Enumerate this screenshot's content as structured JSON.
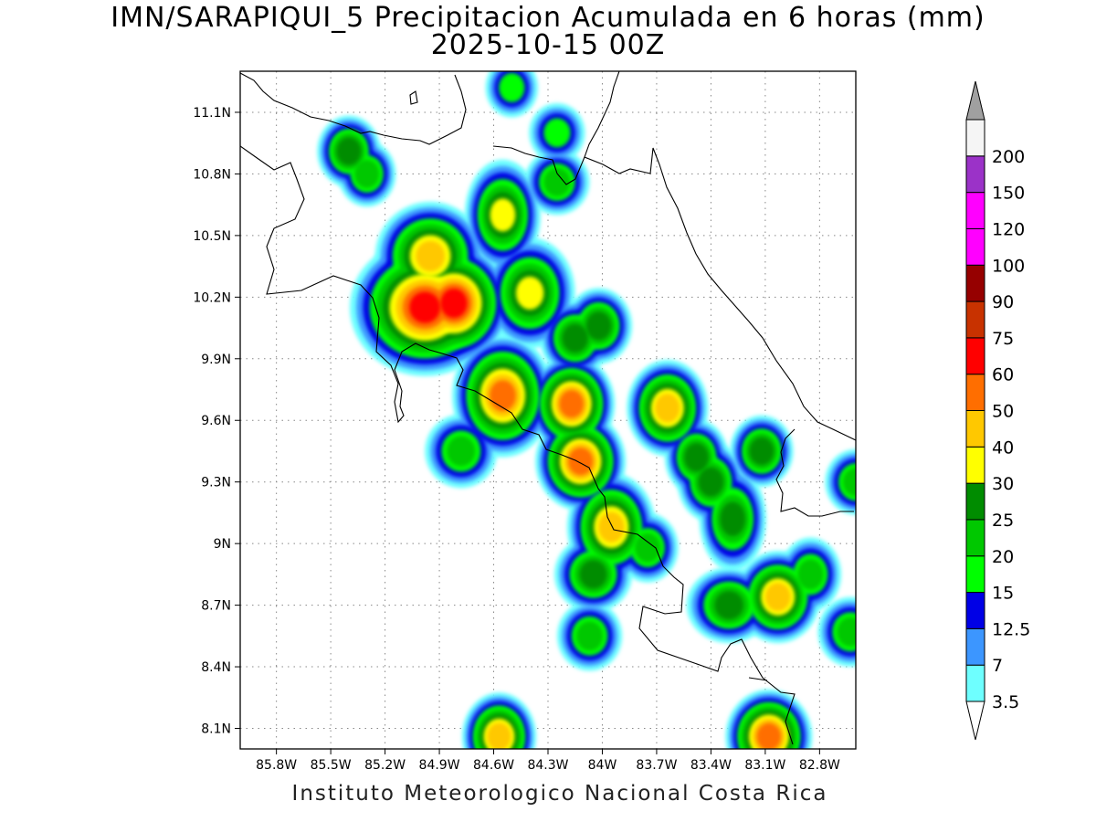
{
  "title": {
    "line1": "IMN/SARAPIQUI_5 Precipitacion Acumulada en 6 horas (mm)",
    "line2": "2025-10-15 00Z"
  },
  "footer": "Instituto Meteorologico Nacional Costa Rica",
  "map": {
    "lon_range": [
      -86.0,
      -82.6
    ],
    "lat_range": [
      8.0,
      11.3
    ],
    "lat_ticks": [
      {
        "value": 11.1,
        "label": "11.1N"
      },
      {
        "value": 10.8,
        "label": "10.8N"
      },
      {
        "value": 10.5,
        "label": "10.5N"
      },
      {
        "value": 10.2,
        "label": "10.2N"
      },
      {
        "value": 9.9,
        "label": "9.9N"
      },
      {
        "value": 9.6,
        "label": "9.6N"
      },
      {
        "value": 9.3,
        "label": "9.3N"
      },
      {
        "value": 9.0,
        "label": "9N"
      },
      {
        "value": 8.7,
        "label": "8.7N"
      },
      {
        "value": 8.4,
        "label": "8.4N"
      },
      {
        "value": 8.1,
        "label": "8.1N"
      }
    ],
    "lon_ticks": [
      {
        "value": -85.8,
        "label": "85.8W"
      },
      {
        "value": -85.5,
        "label": "85.5W"
      },
      {
        "value": -85.2,
        "label": "85.2W"
      },
      {
        "value": -84.9,
        "label": "84.9W"
      },
      {
        "value": -84.6,
        "label": "84.6W"
      },
      {
        "value": -84.3,
        "label": "84.3W"
      },
      {
        "value": -84.0,
        "label": "84W"
      },
      {
        "value": -83.7,
        "label": "83.7W"
      },
      {
        "value": -83.4,
        "label": "83.4W"
      },
      {
        "value": -83.1,
        "label": "83.1W"
      },
      {
        "value": -82.8,
        "label": "82.8W"
      }
    ],
    "grid": "dotted",
    "coastline_color": "#000000"
  },
  "colorbar": {
    "unit": "mm",
    "orientation": "vertical",
    "bins": [
      {
        "label": "3.5",
        "color": "#6effff"
      },
      {
        "label": "7",
        "color": "#3c96ff"
      },
      {
        "label": "12.5",
        "color": "#0000e6"
      },
      {
        "label": "15",
        "color": "#00ff00"
      },
      {
        "label": "20",
        "color": "#00c800"
      },
      {
        "label": "25",
        "color": "#008c00"
      },
      {
        "label": "30",
        "color": "#ffff00"
      },
      {
        "label": "40",
        "color": "#ffc800"
      },
      {
        "label": "50",
        "color": "#ff6e00"
      },
      {
        "label": "60",
        "color": "#ff0000"
      },
      {
        "label": "75",
        "color": "#c83200"
      },
      {
        "label": "90",
        "color": "#960000"
      },
      {
        "label": "100",
        "color": "#ff00ff"
      },
      {
        "label": "120",
        "color": "#ff00ff"
      },
      {
        "label": "150",
        "color": "#9b32c8"
      },
      {
        "label": "200",
        "color": "#f5f5f5"
      }
    ],
    "over_color": "#a0a0a0",
    "under_color": "#ffffff"
  },
  "precip_cells": [
    {
      "lon": -84.98,
      "lat": 10.15,
      "rx": 0.22,
      "ry": 0.14,
      "level": 9
    },
    {
      "lon": -84.82,
      "lat": 10.17,
      "rx": 0.12,
      "ry": 0.1,
      "level": 9
    },
    {
      "lon": -84.95,
      "lat": 10.4,
      "rx": 0.14,
      "ry": 0.1,
      "level": 7
    },
    {
      "lon": -84.55,
      "lat": 10.6,
      "rx": 0.06,
      "ry": 0.12,
      "level": 6
    },
    {
      "lon": -84.4,
      "lat": 10.22,
      "rx": 0.1,
      "ry": 0.12,
      "level": 6
    },
    {
      "lon": -84.55,
      "lat": 9.72,
      "rx": 0.1,
      "ry": 0.12,
      "level": 8
    },
    {
      "lon": -84.17,
      "lat": 9.68,
      "rx": 0.06,
      "ry": 0.06,
      "level": 8
    },
    {
      "lon": -84.12,
      "lat": 9.4,
      "rx": 0.07,
      "ry": 0.06,
      "level": 8
    },
    {
      "lon": -83.95,
      "lat": 9.08,
      "rx": 0.08,
      "ry": 0.1,
      "level": 7
    },
    {
      "lon": -83.64,
      "lat": 9.66,
      "rx": 0.06,
      "ry": 0.07,
      "level": 7
    },
    {
      "lon": -83.03,
      "lat": 8.74,
      "rx": 0.07,
      "ry": 0.06,
      "level": 7
    },
    {
      "lon": -83.08,
      "lat": 8.06,
      "rx": 0.06,
      "ry": 0.05,
      "level": 8
    },
    {
      "lon": -84.57,
      "lat": 8.06,
      "rx": 0.04,
      "ry": 0.05,
      "level": 7
    },
    {
      "lon": -83.4,
      "lat": 9.3,
      "rx": 0.05,
      "ry": 0.06,
      "level": 5
    },
    {
      "lon": -83.28,
      "lat": 9.12,
      "rx": 0.05,
      "ry": 0.12,
      "level": 5
    },
    {
      "lon": -82.85,
      "lat": 8.85,
      "rx": 0.05,
      "ry": 0.06,
      "level": 4
    },
    {
      "lon": -82.63,
      "lat": 8.57,
      "rx": 0.06,
      "ry": 0.05,
      "level": 4
    },
    {
      "lon": -83.3,
      "lat": 8.7,
      "rx": 0.1,
      "ry": 0.05,
      "level": 5
    },
    {
      "lon": -83.75,
      "lat": 8.98,
      "rx": 0.05,
      "ry": 0.05,
      "level": 4
    },
    {
      "lon": -84.05,
      "lat": 8.85,
      "rx": 0.08,
      "ry": 0.05,
      "level": 5
    },
    {
      "lon": -84.07,
      "lat": 8.55,
      "rx": 0.06,
      "ry": 0.05,
      "level": 4
    },
    {
      "lon": -84.78,
      "lat": 9.45,
      "rx": 0.08,
      "ry": 0.06,
      "level": 4
    },
    {
      "lon": -84.02,
      "lat": 10.06,
      "rx": 0.05,
      "ry": 0.05,
      "level": 5
    },
    {
      "lon": -84.15,
      "lat": 10.0,
      "rx": 0.06,
      "ry": 0.05,
      "level": 5
    },
    {
      "lon": -85.4,
      "lat": 10.91,
      "rx": 0.04,
      "ry": 0.04,
      "level": 5
    },
    {
      "lon": -85.3,
      "lat": 10.8,
      "rx": 0.04,
      "ry": 0.04,
      "level": 4
    },
    {
      "lon": -84.25,
      "lat": 10.76,
      "rx": 0.06,
      "ry": 0.04,
      "level": 4
    },
    {
      "lon": -84.25,
      "lat": 11.0,
      "rx": 0.05,
      "ry": 0.04,
      "level": 3
    },
    {
      "lon": -84.5,
      "lat": 11.22,
      "rx": 0.04,
      "ry": 0.04,
      "level": 3
    },
    {
      "lon": -83.12,
      "lat": 9.45,
      "rx": 0.04,
      "ry": 0.04,
      "level": 5
    },
    {
      "lon": -83.48,
      "lat": 9.42,
      "rx": 0.04,
      "ry": 0.05,
      "level": 5
    },
    {
      "lon": -82.6,
      "lat": 9.3,
      "rx": 0.05,
      "ry": 0.04,
      "level": 4
    }
  ]
}
